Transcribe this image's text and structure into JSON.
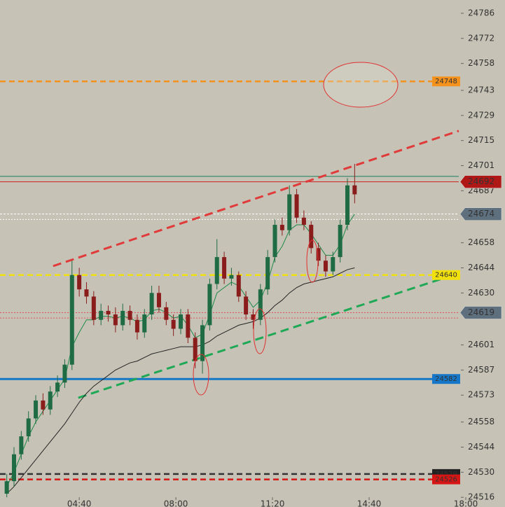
{
  "chart_data": {
    "type": "candlestick",
    "x": [
      130,
      145,
      160,
      175,
      190,
      205,
      220,
      235,
      250,
      265,
      280,
      295,
      310,
      325,
      340,
      355,
      370,
      385,
      400,
      415,
      430,
      445,
      460,
      475,
      490,
      505,
      520,
      535,
      550,
      565,
      580,
      595,
      610,
      625,
      640,
      655,
      670,
      685,
      700,
      715,
      730,
      745,
      760,
      775,
      790,
      805,
      820,
      835,
      850
    ],
    "open": [
      24518,
      24525,
      24540,
      24550,
      24560,
      24570,
      24565,
      24575,
      24580,
      24590,
      24640,
      24632,
      24628,
      24615,
      24620,
      24618,
      24612,
      24620,
      24615,
      24608,
      24618,
      24630,
      24622,
      24615,
      24610,
      24618,
      24605,
      24592,
      24612,
      24635,
      24650,
      24638,
      24640,
      24628,
      24618,
      24615,
      24632,
      24650,
      24668,
      24665,
      24685,
      24672,
      24668,
      24655,
      24648,
      24642,
      24650,
      24668,
      24690
    ],
    "high": [
      24529,
      24544,
      24553,
      24564,
      24573,
      24574,
      24578,
      24584,
      24593,
      24648,
      24644,
      24636,
      24631,
      24624,
      24623,
      24622,
      24624,
      24623,
      24618,
      24621,
      24634,
      24634,
      24625,
      24618,
      24621,
      24621,
      24608,
      24615,
      24638,
      24660,
      24653,
      24644,
      24642,
      24631,
      24621,
      24635,
      24654,
      24671,
      24672,
      24690,
      24688,
      24676,
      24670,
      24658,
      24651,
      24653,
      24671,
      24694,
      24702
    ],
    "low": [
      24516,
      24522,
      24537,
      24547,
      24557,
      24562,
      24562,
      24572,
      24577,
      24587,
      24628,
      24624,
      24612,
      24612,
      24614,
      24608,
      24609,
      24612,
      24604,
      24605,
      24615,
      24619,
      24612,
      24606,
      24607,
      24602,
      24588,
      24585,
      24609,
      24632,
      24635,
      24634,
      24625,
      24615,
      24610,
      24612,
      24629,
      24647,
      24662,
      24662,
      24669,
      24665,
      24652,
      24645,
      24639,
      24640,
      24647,
      24665,
      24680
    ],
    "close": [
      24525,
      24540,
      24550,
      24560,
      24570,
      24565,
      24575,
      24580,
      24590,
      24640,
      24632,
      24628,
      24615,
      24620,
      24618,
      24612,
      24620,
      24615,
      24608,
      24618,
      24630,
      24622,
      24615,
      24610,
      24618,
      24605,
      24592,
      24612,
      24635,
      24650,
      24638,
      24640,
      24628,
      24618,
      24615,
      24632,
      24650,
      24668,
      24665,
      24685,
      24672,
      24668,
      24655,
      24648,
      24642,
      24650,
      24668,
      24690,
      24685
    ],
    "up_color": "#1f6b43",
    "down_color": "#8a1c1c",
    "moving_averages": [
      {
        "color": "#1e8a4a",
        "values": [
          24522,
          24530,
          24540,
          24550,
          24558,
          24564,
          24570,
          24576,
          24582,
          24600,
          24608,
          24615,
          24615,
          24617,
          24617,
          24616,
          24617,
          24616,
          24614,
          24615,
          24620,
          24621,
          24619,
          24616,
          24617,
          24612,
          24605,
          24607,
          24618,
          24630,
          24633,
          24636,
          24634,
          24628,
          24622,
          24626,
          24636,
          24650,
          24656,
          24665,
          24668,
          24668,
          24663,
          24657,
          24651,
          24651,
          24657,
          24668,
          24674
        ]
      },
      {
        "color": "#222222",
        "values": [
          24518,
          24522,
          24527,
          24532,
          24537,
          24542,
          24547,
          24552,
          24557,
          24563,
          24569,
          24574,
          24578,
          24581,
          24584,
          24587,
          24589,
          24591,
          24592,
          24594,
          24596,
          24597,
          24598,
          24599,
          24600,
          24600,
          24600,
          24601,
          24603,
          24606,
          24608,
          24610,
          24612,
          24613,
          24614,
          24616,
          24619,
          24623,
          24626,
          24630,
          24633,
          24635,
          24636,
          24637,
          24638,
          24639,
          24641,
          24643,
          24644
        ]
      }
    ],
    "levels": [
      {
        "value": 24748,
        "color": "#f5921e",
        "style": "dashed",
        "badge": "inside",
        "badge_color": "#f5921e"
      },
      {
        "value": 24695,
        "color": "#1a7f5a",
        "style": "solid"
      },
      {
        "value": 24692,
        "color": "#cc1f1f",
        "style": "solid",
        "badge": "axis",
        "badge_color": "#b01818"
      },
      {
        "value": 24674,
        "color": "#ffffff",
        "style": "fine",
        "badge": "axis",
        "badge_color": "#5e6f7e"
      },
      {
        "value": 24671,
        "color": "#ffffff",
        "style": "dotted"
      },
      {
        "value": 24640,
        "color": "#f2e00c",
        "style": "dashed",
        "badge": "inside",
        "badge_color": "#f2e00c"
      },
      {
        "value": 24619,
        "color": "#e05050",
        "style": "dotted",
        "badge": "axis",
        "badge_color": "#5e6f7e"
      },
      {
        "value": 24616,
        "color": "#e05050",
        "style": "dotted"
      },
      {
        "value": 24582,
        "color": "#1677c9",
        "style": "solid",
        "badge": "inside",
        "badge_color": "#1677c9"
      },
      {
        "value": 24529,
        "color": "#333333",
        "style": "dashed",
        "badge": "inside",
        "badge_color": "#222222"
      },
      {
        "value": 24526,
        "color": "#d61515",
        "style": "dashed",
        "badge": "inside",
        "badge_color": "#d61515"
      }
    ],
    "trendlines": [
      {
        "x": [
          226,
          1066
        ],
        "y": [
          24645,
          24720.4
        ],
        "color": "#e03a3a"
      },
      {
        "x": [
          278,
          1066
        ],
        "y": [
          24571.5,
          24641
        ],
        "color": "#1fa855"
      }
    ],
    "xlim": [
      116,
      1080
    ],
    "ylim": [
      24510.6,
      24793.4
    ],
    "xticks": [
      {
        "value": 280,
        "label": "04:40"
      },
      {
        "value": 480,
        "label": "08:00"
      },
      {
        "value": 680,
        "label": "11:20"
      },
      {
        "value": 880,
        "label": "14:40"
      },
      {
        "value": 1080,
        "label": "18:00"
      }
    ],
    "yticks": [
      24786,
      24772,
      24758,
      24743,
      24729,
      24715,
      24701,
      24687,
      24658,
      24644,
      24630,
      24601,
      24587,
      24573,
      24558,
      24544,
      24530,
      24516
    ]
  }
}
